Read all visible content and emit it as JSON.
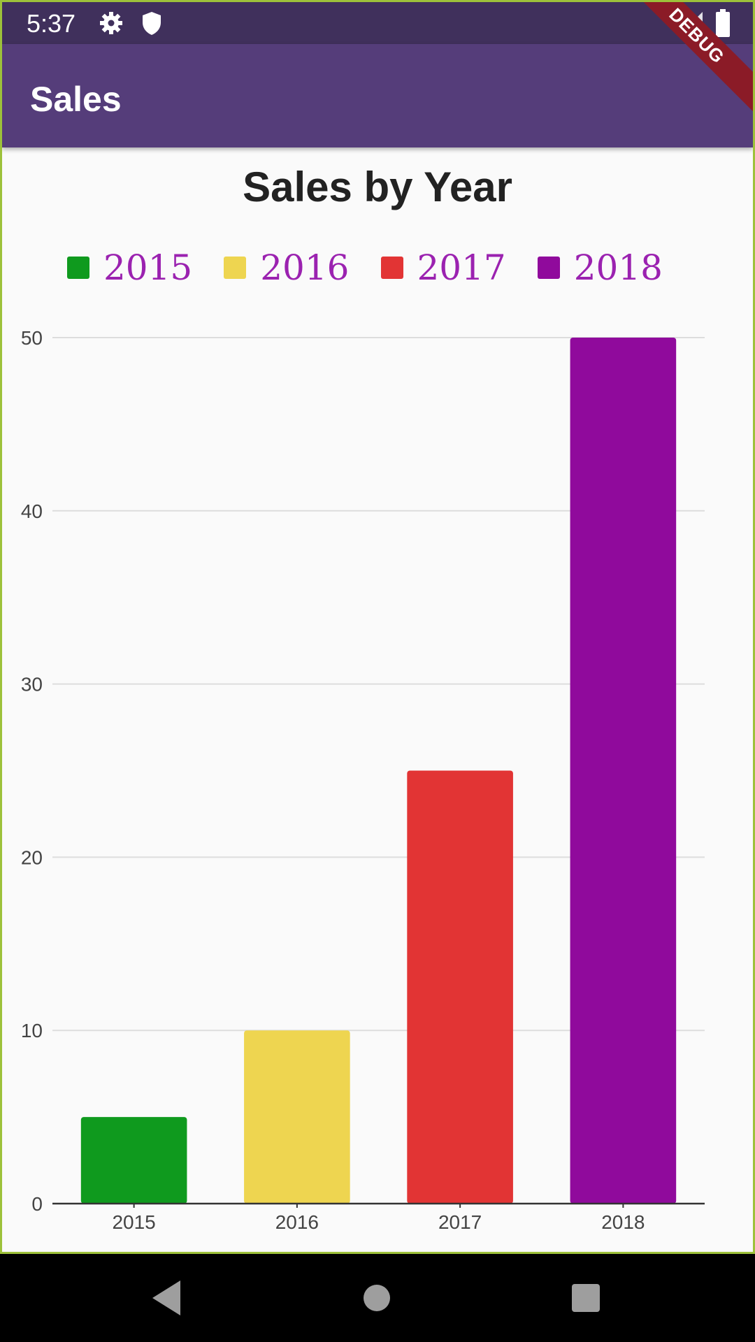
{
  "status_bar": {
    "time": "5:37",
    "icons": [
      "gear-icon",
      "shield-icon",
      "signal-icon",
      "battery-icon"
    ]
  },
  "app_bar": {
    "title": "Sales"
  },
  "debug_banner": "DEBUG",
  "chart_data": {
    "type": "bar",
    "title": "Sales by Year",
    "categories": [
      "2015",
      "2016",
      "2017",
      "2018"
    ],
    "values": [
      5,
      10,
      25,
      50
    ],
    "colors": [
      "#0f9a1e",
      "#eed550",
      "#e23434",
      "#900a9c"
    ],
    "legend": [
      "2015",
      "2016",
      "2017",
      "2018"
    ],
    "legend_position": "top",
    "xlabel": "",
    "ylabel": "",
    "ylim": [
      0,
      50
    ],
    "yticks": [
      0,
      10,
      20,
      30,
      40,
      50
    ],
    "grid": true
  },
  "nav_bar": {
    "icons": [
      "back-icon",
      "home-icon",
      "recents-icon"
    ]
  }
}
